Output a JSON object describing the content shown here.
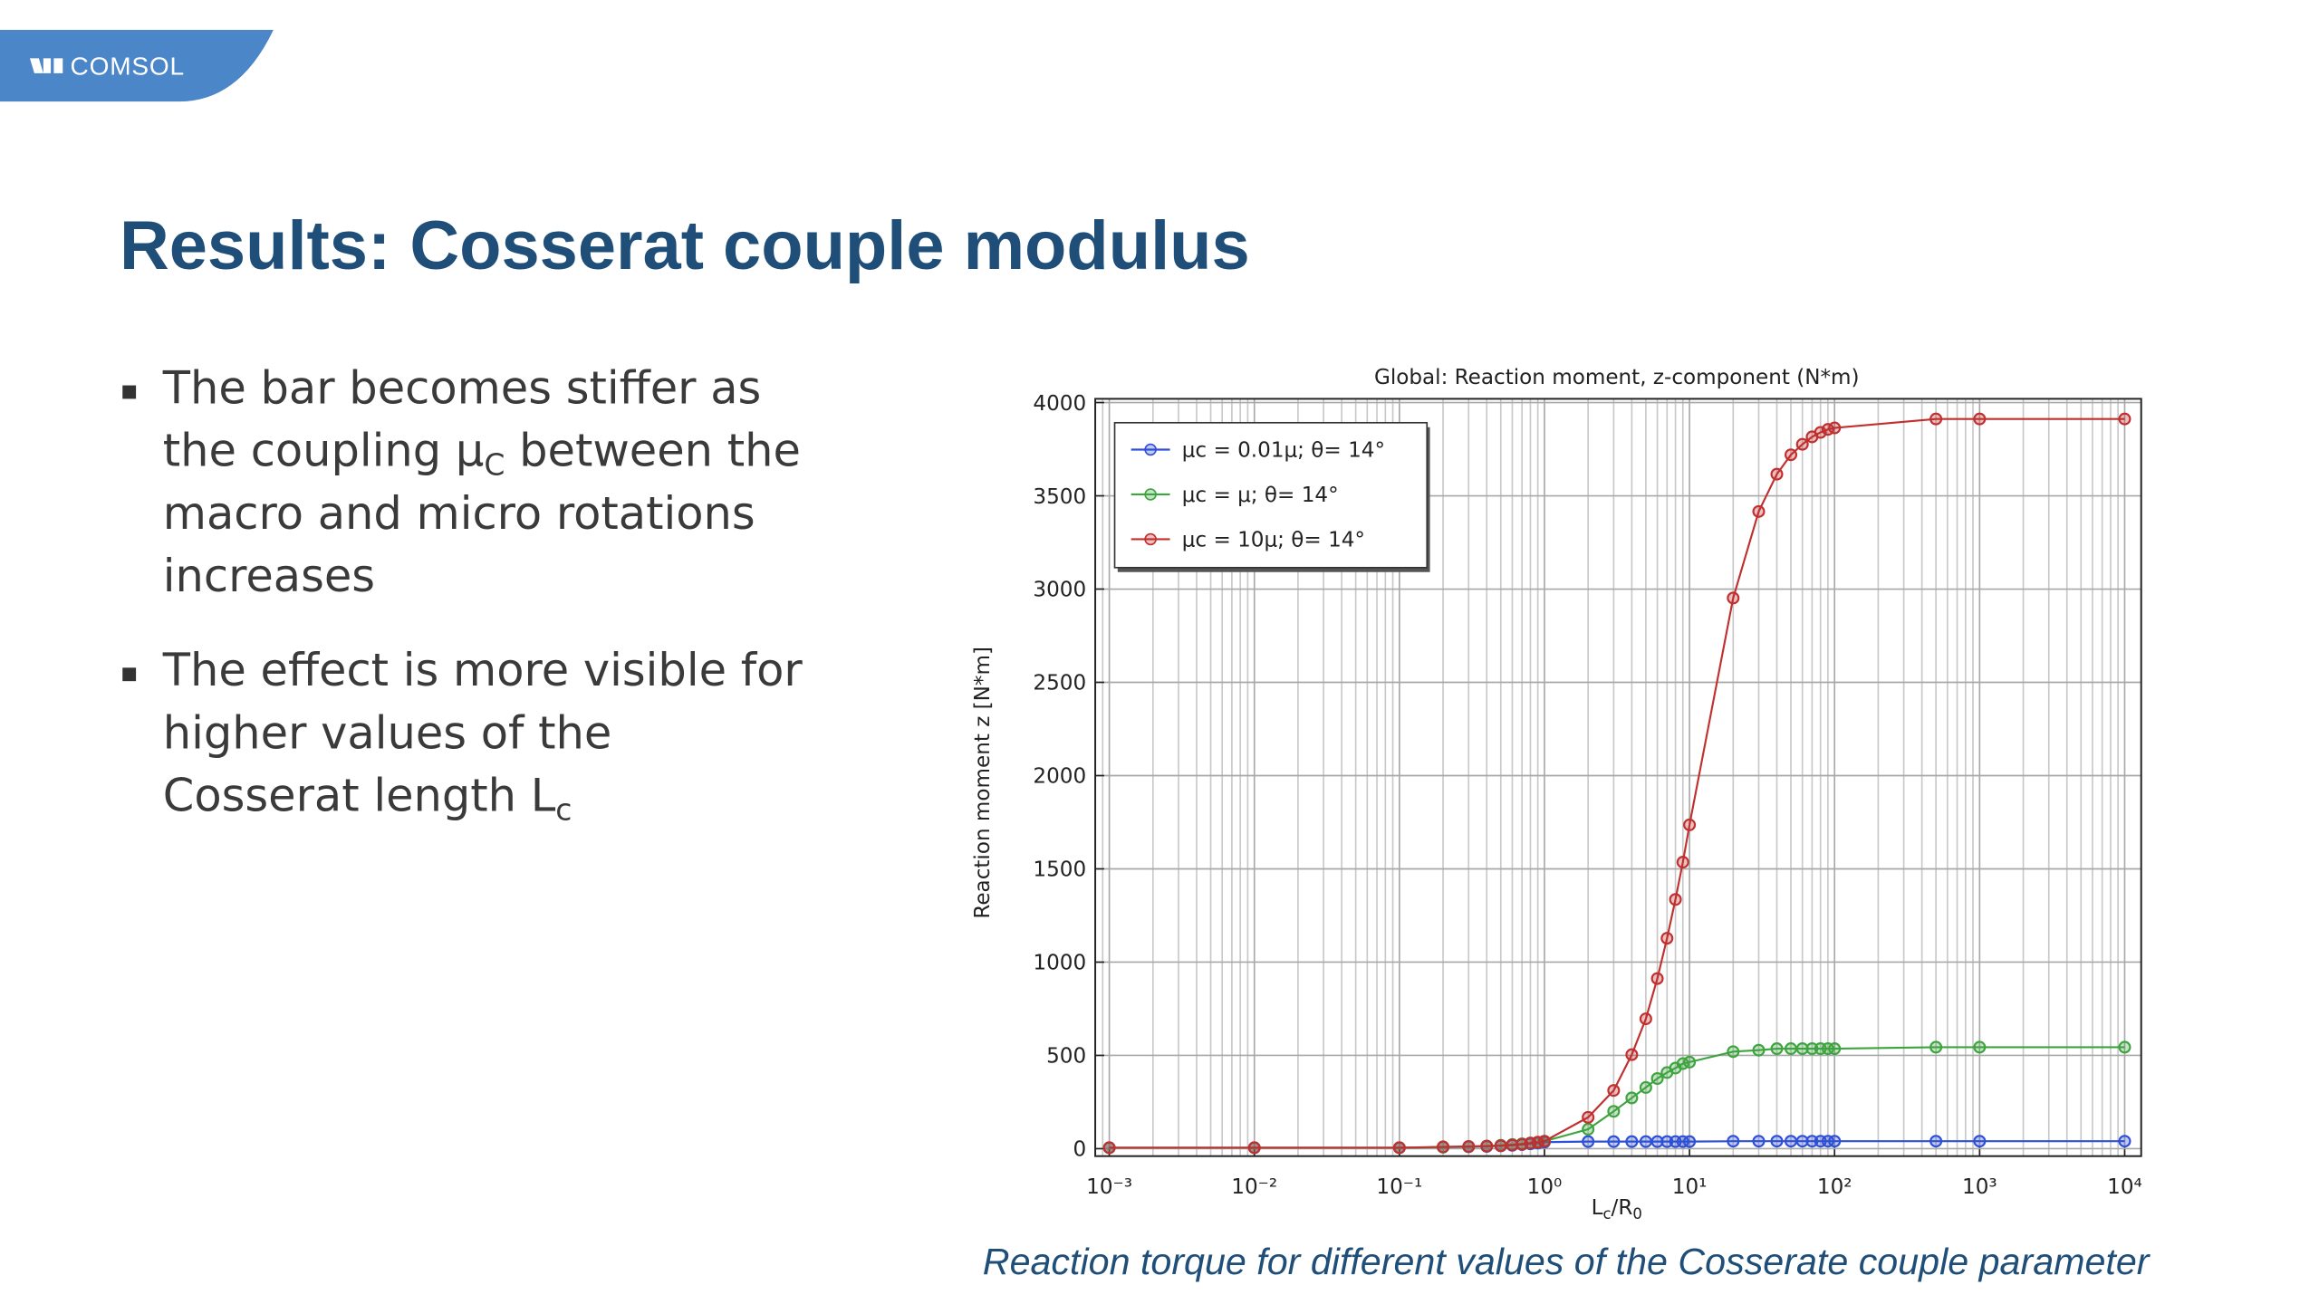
{
  "logo": "COMSOL",
  "title": "Results: Cosserat couple modulus",
  "bullets": [
    [
      [
        "The bar becomes stiffer as"
      ],
      [
        "the coupling μ",
        "C",
        " between the"
      ],
      [
        "macro and micro rotations"
      ],
      [
        "increases"
      ]
    ],
    [
      [
        "The effect is more visible for"
      ],
      [
        "higher values of the"
      ],
      [
        "Cosserat length L",
        "c"
      ]
    ]
  ],
  "caption": "Reaction torque for different values of the Cosserate couple parameter",
  "chart_data": {
    "type": "line",
    "title": "Global: Reaction moment, z-component (N*m)",
    "ylabel": "Reaction moment z [N*m]",
    "xlabel": [
      "L",
      "c",
      "/R",
      "0"
    ],
    "log_x": true,
    "grid": true,
    "minor_grid": true,
    "legend": "upper left",
    "xlim": [
      0.0008,
      13000
    ],
    "ylim": [
      -40,
      4020
    ],
    "xticks": [
      {
        "value": 0.001,
        "label": "10⁻³"
      },
      {
        "value": 0.01,
        "label": "10⁻²"
      },
      {
        "value": 0.1,
        "label": "10⁻¹"
      },
      {
        "value": 1,
        "label": "10⁰"
      },
      {
        "value": 10,
        "label": "10¹"
      },
      {
        "value": 100,
        "label": "10²"
      },
      {
        "value": 1000,
        "label": "10³"
      },
      {
        "value": 10000,
        "label": "10⁴"
      }
    ],
    "yticks": [
      0,
      500,
      1000,
      1500,
      2000,
      2500,
      3000,
      3500,
      4000
    ],
    "x": [
      0.001,
      0.01,
      0.1,
      0.2,
      0.3,
      0.4,
      0.5,
      0.6,
      0.7,
      0.8,
      0.9,
      1,
      2,
      3,
      4,
      5,
      6,
      7,
      8,
      9,
      10,
      20,
      30,
      40,
      50,
      60,
      70,
      80,
      90,
      100,
      500,
      1000,
      10000
    ],
    "series": [
      {
        "name": "μc = 0.01μ; θ= 14°",
        "color": "#2f4fd6",
        "values": [
          5,
          5,
          5,
          8,
          10,
          12,
          15,
          18,
          22,
          26,
          30,
          35,
          38,
          38,
          38,
          38,
          38,
          38,
          38,
          38,
          38,
          40,
          40,
          40,
          40,
          40,
          40,
          40,
          40,
          40,
          40,
          40,
          40
        ]
      },
      {
        "name": "μc = μ; θ= 14°",
        "color": "#3ea43f",
        "values": [
          5,
          5,
          5,
          8,
          11,
          14,
          18,
          22,
          26,
          30,
          34,
          40,
          104,
          200,
          272,
          328,
          376,
          408,
          432,
          456,
          464,
          520,
          528,
          536,
          536,
          536,
          536,
          536,
          536,
          536,
          544,
          544,
          544
        ]
      },
      {
        "name": "μc = 10μ; θ= 14°",
        "color": "#c0302f",
        "values": [
          5,
          5,
          5,
          10,
          12,
          14,
          16,
          20,
          24,
          30,
          35,
          40,
          168,
          312,
          504,
          696,
          912,
          1128,
          1336,
          1536,
          1736,
          2952,
          3416,
          3616,
          3720,
          3776,
          3816,
          3840,
          3856,
          3864,
          3912,
          3912,
          3912
        ]
      }
    ]
  }
}
